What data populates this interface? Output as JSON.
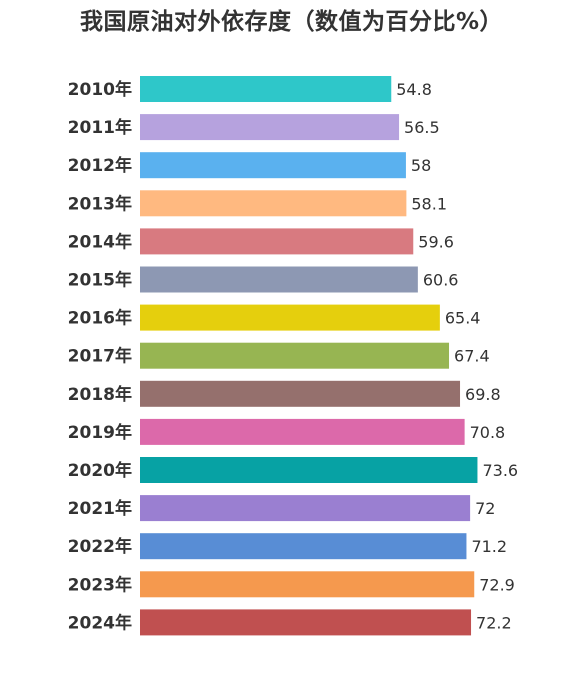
{
  "chart_data": {
    "type": "bar",
    "orientation": "horizontal",
    "title": "我国原油对外依存度（数值为百分比%）",
    "categories": [
      "2010年",
      "2011年",
      "2012年",
      "2013年",
      "2014年",
      "2015年",
      "2016年",
      "2017年",
      "2018年",
      "2019年",
      "2020年",
      "2021年",
      "2022年",
      "2023年",
      "2024年"
    ],
    "values": [
      54.8,
      56.5,
      58,
      58.1,
      59.6,
      60.6,
      65.4,
      67.4,
      69.8,
      70.8,
      73.6,
      72,
      71.2,
      72.9,
      72.2
    ],
    "value_labels": [
      "54.8",
      "56.5",
      "58",
      "58.1",
      "59.6",
      "60.6",
      "65.4",
      "67.4",
      "69.8",
      "70.8",
      "73.6",
      "72",
      "71.2",
      "72.9",
      "72.2"
    ],
    "colors": [
      "#2ec7c9",
      "#b6a2de",
      "#5ab1ef",
      "#ffb980",
      "#d87a80",
      "#8d98b3",
      "#e5cf0d",
      "#97b552",
      "#95706d",
      "#dc69aa",
      "#07a2a4",
      "#9a7fd1",
      "#588dd5",
      "#f5994e",
      "#c05050"
    ],
    "xlabel": "",
    "ylabel": "",
    "xlim": [
      0,
      100
    ],
    "grid": false,
    "legend": "none"
  }
}
